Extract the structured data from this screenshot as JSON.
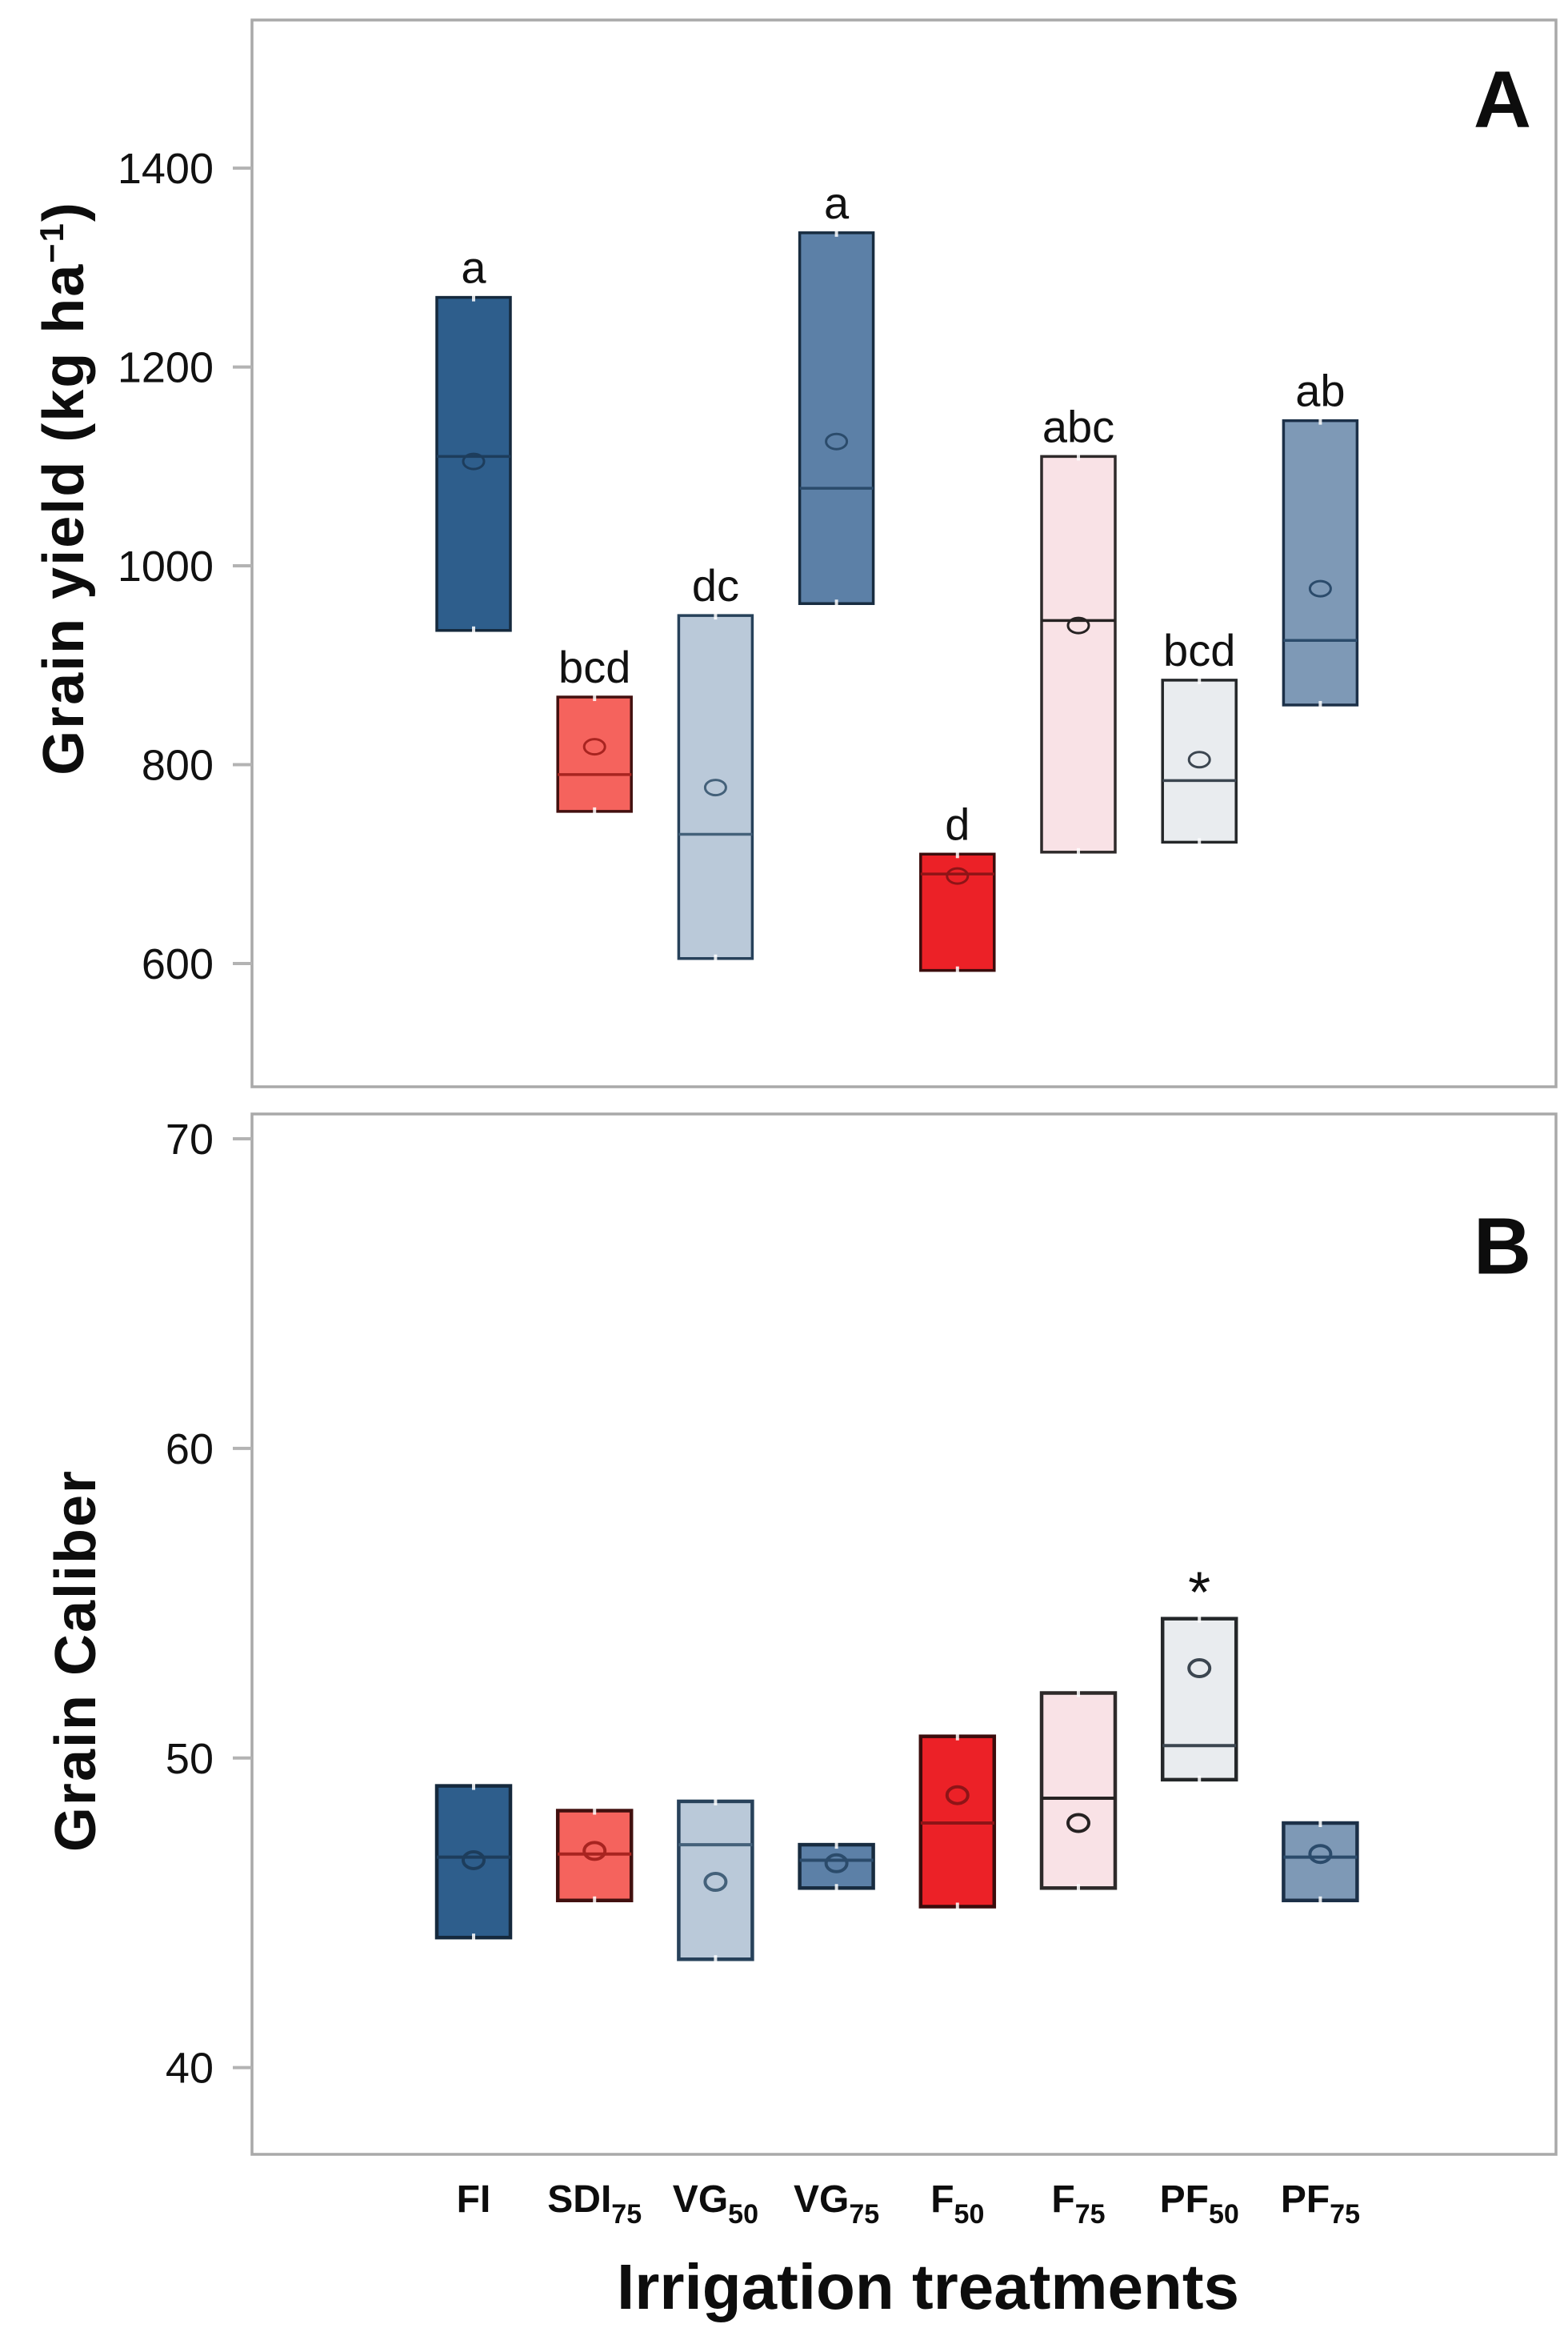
{
  "figure": {
    "xlabel": "Irrigation treatments",
    "ylabel_a": {
      "pre": "Grain yield (kg ha",
      "sup": "−1",
      "post": ")"
    },
    "ylabel_b": "Grain Caliber"
  },
  "treatments": [
    {
      "id": "FI",
      "base": "FI",
      "sub": "",
      "fill": "#2e5e8c",
      "stroke": "#15293d",
      "accent": "#1d3d5c"
    },
    {
      "id": "SDI75",
      "base": "SDI",
      "sub": "75",
      "fill": "#f5635d",
      "stroke": "#42100f",
      "accent": "#a82420"
    },
    {
      "id": "VG50",
      "base": "VG",
      "sub": "50",
      "fill": "#bac9d9",
      "stroke": "#27415a",
      "accent": "#44617a"
    },
    {
      "id": "VG75",
      "base": "VG",
      "sub": "75",
      "fill": "#5c80a7",
      "stroke": "#182c40",
      "accent": "#2b4b6b"
    },
    {
      "id": "F50",
      "base": "F",
      "sub": "50",
      "fill": "#ec2127",
      "stroke": "#3c0c0c",
      "accent": "#8e1417"
    },
    {
      "id": "F75",
      "base": "F",
      "sub": "75",
      "fill": "#f9e2e6",
      "stroke": "#2e2a2a",
      "accent": "#262222"
    },
    {
      "id": "PF50",
      "base": "PF",
      "sub": "50",
      "fill": "#e9ecef",
      "stroke": "#242729",
      "accent": "#3c4650"
    },
    {
      "id": "PF75",
      "base": "PF",
      "sub": "75",
      "fill": "#7e99b6",
      "stroke": "#1c3048",
      "accent": "#2b4b6b"
    }
  ],
  "chart_data": [
    {
      "type": "box",
      "panel": "A",
      "ylabel": "Grain yield (kg ha−1)",
      "yticks": [
        1400,
        1200,
        1000,
        800,
        600
      ],
      "ylim": [
        476,
        1549
      ],
      "grid": false,
      "series": [
        {
          "treatment": "FI",
          "q1": 935,
          "median": 1110,
          "mean": 1105,
          "q3": 1270,
          "label": "a"
        },
        {
          "treatment": "SDI75",
          "q1": 753,
          "median": 790,
          "mean": 818,
          "q3": 868,
          "label": "bcd"
        },
        {
          "treatment": "VG50",
          "q1": 605,
          "median": 730,
          "mean": 777,
          "q3": 950,
          "label": "dc"
        },
        {
          "treatment": "VG75",
          "q1": 962,
          "median": 1078,
          "mean": 1125,
          "q3": 1335,
          "label": "a"
        },
        {
          "treatment": "F50",
          "q1": 593,
          "median": 690,
          "mean": 688,
          "q3": 710,
          "label": "d"
        },
        {
          "treatment": "F75",
          "q1": 712,
          "median": 945,
          "mean": 940,
          "q3": 1110,
          "label": "abc"
        },
        {
          "treatment": "PF50",
          "q1": 722,
          "median": 784,
          "mean": 805,
          "q3": 885,
          "label": "bcd"
        },
        {
          "treatment": "PF75",
          "q1": 860,
          "median": 925,
          "mean": 977,
          "q3": 1146,
          "label": "ab"
        }
      ]
    },
    {
      "type": "box",
      "panel": "B",
      "ylabel": "Grain Caliber",
      "yticks": [
        70,
        60,
        50,
        40
      ],
      "ylim": [
        37.2,
        70.8
      ],
      "grid": false,
      "series": [
        {
          "treatment": "FI",
          "q1": 44.2,
          "median": 46.8,
          "mean": 46.7,
          "q3": 49.1,
          "label": ""
        },
        {
          "treatment": "SDI75",
          "q1": 45.4,
          "median": 46.9,
          "mean": 47.0,
          "q3": 48.3,
          "label": ""
        },
        {
          "treatment": "VG50",
          "q1": 43.5,
          "median": 47.2,
          "mean": 46.0,
          "q3": 48.6,
          "label": ""
        },
        {
          "treatment": "VG75",
          "q1": 45.8,
          "median": 46.7,
          "mean": 46.6,
          "q3": 47.2,
          "label": ""
        },
        {
          "treatment": "F50",
          "q1": 45.2,
          "median": 47.9,
          "mean": 48.8,
          "q3": 50.7,
          "label": ""
        },
        {
          "treatment": "F75",
          "q1": 45.8,
          "median": 48.7,
          "mean": 47.9,
          "q3": 52.1,
          "label": ""
        },
        {
          "treatment": "PF50",
          "q1": 49.3,
          "median": 50.4,
          "mean": 52.9,
          "q3": 54.5,
          "label": "*"
        },
        {
          "treatment": "PF75",
          "q1": 45.4,
          "median": 46.8,
          "mean": 46.9,
          "q3": 47.9,
          "label": ""
        }
      ]
    }
  ]
}
